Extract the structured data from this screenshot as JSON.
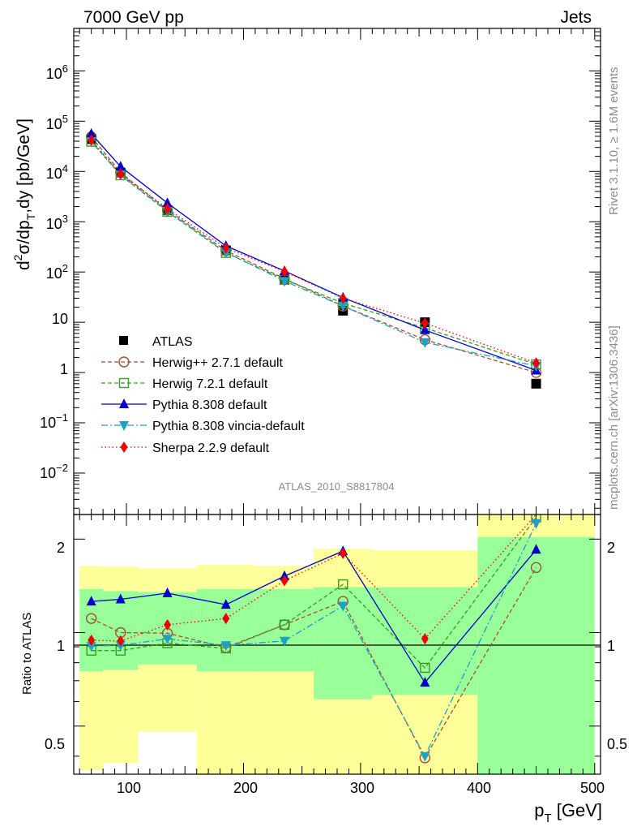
{
  "header": {
    "left": "7000 GeV pp",
    "right": "Jets"
  },
  "side_labels": {
    "rivet": "Rivet 3.1.10, ≥ 1.6M events",
    "mcplots": "mcplots.cern.ch [arXiv:1306.3436]"
  },
  "analysis_id": "ATLAS_2010_S8817804",
  "colors": {
    "atlas": "#000000",
    "herwigpp": "#a0522d",
    "herwig7": "#3a9a22",
    "pythia": "#0000cc",
    "vincia": "#1fa0c8",
    "sherpa": "#ee0000",
    "band_outer": "#ffff99",
    "band_inner": "#99ff99"
  },
  "chart_data": [
    {
      "type": "line",
      "panel": "main",
      "ylabel": "d²σ/dp_T,dy [pb/GeV]",
      "ylabel_parts": {
        "a": "d",
        "b": "2",
        "c": "σ/dp",
        "d": "T",
        "e": ",dy [pb/GeV]"
      },
      "yscale": "log",
      "ylim": [
        0.0015,
        7000000
      ],
      "xlim": [
        55,
        505
      ],
      "y_tick_labels": {
        "p6": {
          "base": "10",
          "exp": "6"
        },
        "p5": {
          "base": "10",
          "exp": "5"
        },
        "p4": {
          "base": "10",
          "exp": "4"
        },
        "p3": {
          "base": "10",
          "exp": "3"
        },
        "p2": {
          "base": "10",
          "exp": "2"
        },
        "p1": {
          "base": "10"
        },
        "p0": {
          "base": "1"
        },
        "m1": {
          "base": "10",
          "exp": "−1"
        },
        "m2": {
          "base": "10",
          "exp": "−2"
        }
      },
      "x": [
        70,
        95,
        135,
        185,
        235,
        285,
        355,
        450
      ],
      "series": [
        {
          "key": "atlas",
          "name": "ATLAS",
          "values": [
            44000,
            9500,
            1700,
            270,
            70,
            17,
            10,
            0.6
          ]
        },
        {
          "key": "herwigpp",
          "name": "Herwig++ 2.7.1 default",
          "values": [
            49000,
            9500,
            1700,
            265,
            74,
            21,
            4.5,
            1.0
          ]
        },
        {
          "key": "herwig7",
          "name": "Herwig 7.2.1 default",
          "values": [
            39000,
            8400,
            1580,
            240,
            71,
            24,
            7.7,
            1.45
          ]
        },
        {
          "key": "pythia",
          "name": "Pythia 8.308 default",
          "values": [
            56000,
            12500,
            2350,
            330,
            105,
            31,
            7.0,
            1.1
          ]
        },
        {
          "key": "vincia",
          "name": "Pythia 8.308 vincia-default",
          "values": [
            40000,
            8700,
            1630,
            245,
            66,
            21,
            4.0,
            1.35
          ]
        },
        {
          "key": "sherpa",
          "name": "Sherpa 2.2.9 default",
          "values": [
            42000,
            8900,
            1820,
            300,
            102,
            30,
            9.6,
            1.55
          ]
        }
      ]
    },
    {
      "type": "line",
      "panel": "ratio",
      "ylabel": "Ratio to ATLAS",
      "yscale": "log",
      "ylim": [
        0.35,
        2.4
      ],
      "y_tick_labels": {
        "half": "0.5",
        "one": "1",
        "two": "2"
      },
      "xlabel_parts": {
        "a": "p",
        "b": "T",
        "c": " [GeV]"
      },
      "x_tick_labels": {
        "t100": "100",
        "t200": "200",
        "t300": "300",
        "t400": "400",
        "t500": "500"
      },
      "bands": [
        {
          "x0": 60,
          "x1": 80,
          "outer": [
            0.36,
            1.64
          ],
          "inner": [
            0.75,
            1.38
          ]
        },
        {
          "x0": 80,
          "x1": 110,
          "outer": [
            0.38,
            1.63
          ],
          "inner": [
            0.76,
            1.36
          ]
        },
        {
          "x0": 110,
          "x1": 160,
          "outer": [
            0.48,
            1.61
          ],
          "inner": [
            0.79,
            1.35
          ]
        },
        {
          "x0": 160,
          "x1": 210,
          "outer": [
            0.35,
            1.65
          ],
          "inner": [
            0.75,
            1.38
          ]
        },
        {
          "x0": 210,
          "x1": 260,
          "outer": [
            0.35,
            1.64
          ],
          "inner": [
            0.75,
            1.38
          ]
        },
        {
          "x0": 260,
          "x1": 310,
          "outer": [
            0.35,
            1.86
          ],
          "inner": [
            0.61,
            1.4
          ]
        },
        {
          "x0": 310,
          "x1": 400,
          "outer": [
            0.35,
            1.84
          ],
          "inner": [
            0.63,
            1.4
          ]
        },
        {
          "x0": 400,
          "x1": 500,
          "outer": [
            0.35,
            2.4
          ],
          "inner": [
            0.35,
            2.03
          ]
        }
      ],
      "x": [
        70,
        95,
        135,
        185,
        235,
        285,
        355,
        450
      ],
      "series": [
        {
          "key": "herwigpp",
          "values": [
            1.11,
            1.0,
            0.995,
            0.895,
            1.06,
            1.26,
            0.395,
            1.62
          ]
        },
        {
          "key": "herwig7",
          "values": [
            0.875,
            0.875,
            0.925,
            0.89,
            1.06,
            1.43,
            0.77,
            2.35
          ]
        },
        {
          "key": "pythia",
          "values": [
            1.26,
            1.28,
            1.34,
            1.23,
            1.52,
            1.83,
            0.69,
            1.85
          ]
        },
        {
          "key": "vincia",
          "values": [
            0.905,
            0.91,
            0.955,
            0.91,
            0.94,
            1.22,
            0.4,
            2.25
          ]
        },
        {
          "key": "sherpa",
          "values": [
            0.945,
            0.94,
            1.06,
            1.11,
            1.47,
            1.8,
            0.955,
            2.5
          ]
        }
      ]
    }
  ]
}
